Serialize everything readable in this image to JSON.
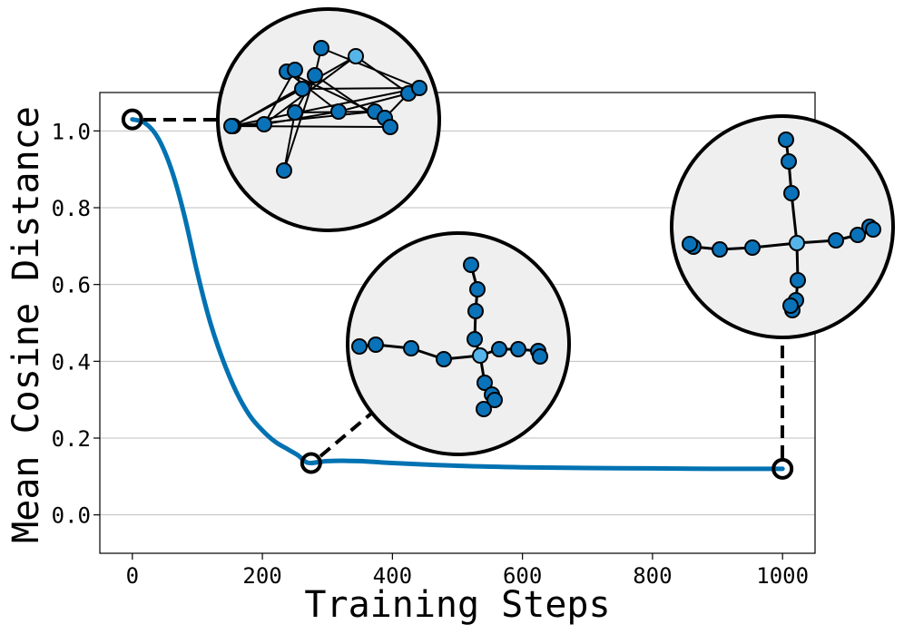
{
  "chart_data": {
    "type": "line",
    "title": "",
    "xlabel": "Training Steps",
    "ylabel": "Mean Cosine Distance",
    "xlim": [
      -50,
      1050
    ],
    "ylim": [
      -0.1,
      1.1
    ],
    "x_ticks": [
      0,
      200,
      400,
      600,
      800,
      1000
    ],
    "x_tick_labels": [
      "0",
      "200",
      "400",
      "600",
      "800",
      "1000"
    ],
    "y_ticks": [
      0.0,
      0.2,
      0.4,
      0.6,
      0.8,
      1.0
    ],
    "y_tick_labels": [
      "0.0",
      "0.2",
      "0.4",
      "0.6",
      "0.8",
      "1.0"
    ],
    "grid": "horizontal",
    "line_color": "#0072B2",
    "series": [
      {
        "x": [
          0,
          20,
          40,
          60,
          80,
          100,
          120,
          140,
          160,
          180,
          200,
          220,
          240,
          255,
          265,
          275,
          300,
          350,
          400,
          500,
          600,
          700,
          800,
          900,
          1000
        ],
        "y": [
          1.03,
          1.02,
          0.98,
          0.9,
          0.78,
          0.63,
          0.5,
          0.4,
          0.32,
          0.26,
          0.22,
          0.19,
          0.17,
          0.155,
          0.14,
          0.135,
          0.14,
          0.14,
          0.135,
          0.128,
          0.124,
          0.122,
          0.121,
          0.12,
          0.12
        ]
      }
    ],
    "highlights": [
      {
        "x": 0,
        "y": 1.03
      },
      {
        "x": 275,
        "y": 0.135
      },
      {
        "x": 1000,
        "y": 0.12
      }
    ],
    "insets": [
      {
        "stage": "early",
        "layout": "tangled"
      },
      {
        "stage": "middle",
        "layout": "cross"
      },
      {
        "stage": "final",
        "layout": "cross"
      }
    ]
  }
}
